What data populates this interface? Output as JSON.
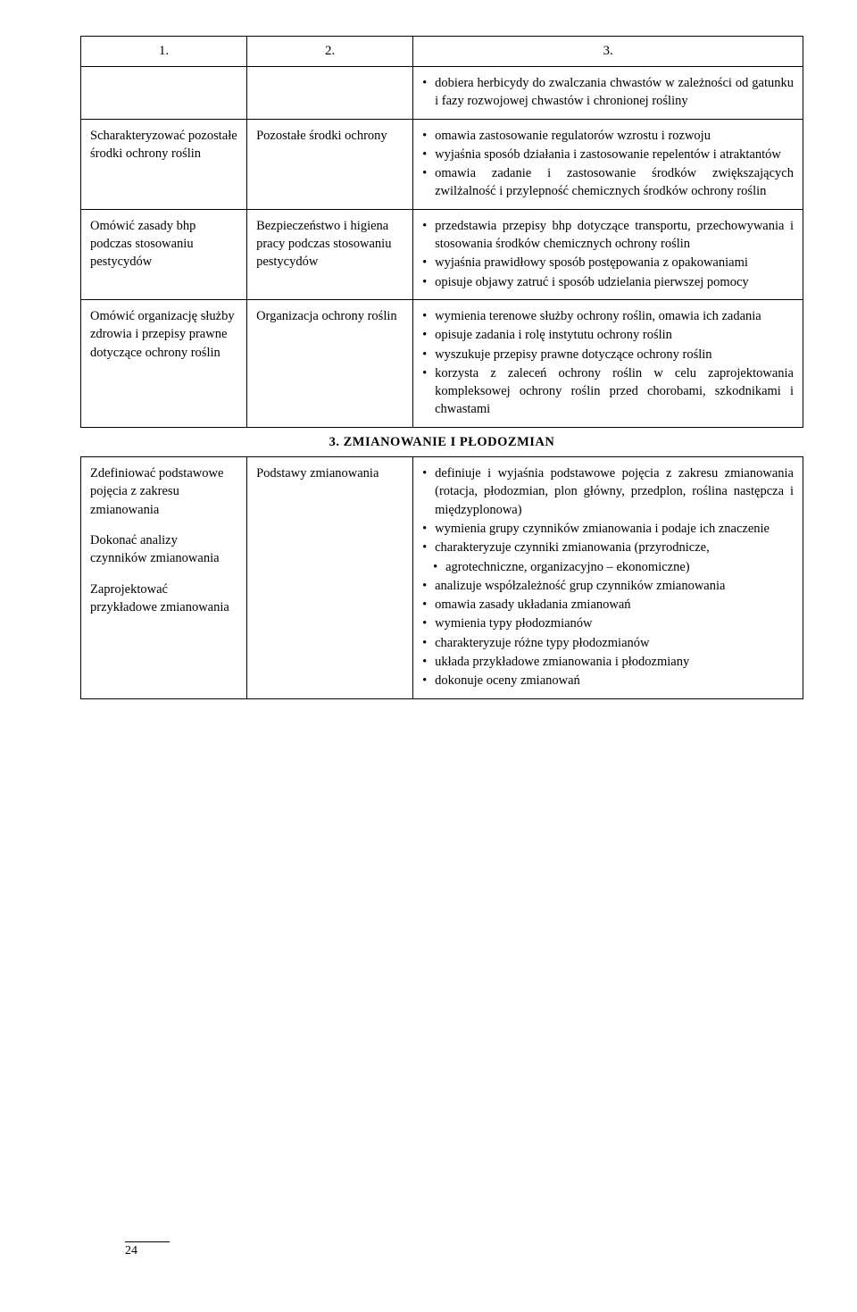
{
  "header": {
    "c1": "1.",
    "c2": "2.",
    "c3": "3."
  },
  "rows": [
    {
      "c1": "",
      "c2": "",
      "c3_items": [
        "dobiera herbicydy do zwalczania chwastów w zależności od gatunku i fazy rozwojowej chwastów i chronionej rośliny"
      ]
    },
    {
      "c1": "Scharakteryzować pozostałe środki ochrony roślin",
      "c2": "Pozostałe środki ochrony",
      "c3_items": [
        "omawia zastosowanie regulatorów wzrostu i rozwoju",
        "wyjaśnia sposób działania i zastosowanie repelentów i atraktantów",
        "omawia zadanie i zastosowanie środków zwiększających zwilżalność i przylepność chemicznych środków ochrony roślin"
      ]
    },
    {
      "c1": "Omówić zasady bhp podczas stosowaniu pestycydów",
      "c2": "Bezpieczeństwo i higiena pracy podczas stosowaniu pestycydów",
      "c3_items": [
        "przedstawia przepisy bhp dotyczące transportu, przechowywania i stosowania środków chemicznych ochrony roślin",
        "wyjaśnia prawidłowy sposób postępowania z opakowaniami",
        "opisuje objawy zatruć i sposób udzielania pierwszej pomocy"
      ]
    },
    {
      "c1": "Omówić organizację służby zdrowia i przepisy prawne dotyczące ochrony roślin",
      "c2": "Organizacja ochrony roślin",
      "c3_items": [
        "wymienia terenowe służby ochrony roślin, omawia ich zadania",
        "opisuje zadania i rolę instytutu ochrony roślin",
        "wyszukuje przepisy prawne dotyczące ochrony roślin",
        "korzysta z zaleceń ochrony roślin w celu zaprojektowania kompleksowej ochrony roślin przed chorobami, szkodnikami i chwastami"
      ]
    }
  ],
  "section_title": "3. ZMIANOWANIE I PŁODOZMIAN",
  "row5": {
    "c1_blocks": [
      "Zdefiniować podstawowe pojęcia z zakresu zmianowania",
      "Dokonać analizy czynników zmianowania",
      "Zaprojektować przykładowe zmianowania"
    ],
    "c2": "Podstawy zmianowania",
    "c3_items": [
      "definiuje i wyjaśnia podstawowe pojęcia z zakresu zmianowania (rotacja, płodozmian, plon główny, przedplon, roślina następcza i międzyplonowa)",
      "wymienia grupy czynników zmianowania i podaje ich znaczenie",
      "charakteryzuje czynniki zmianowania (przyrodnicze,"
    ],
    "c3_indent": [
      "agrotechniczne, organizacyjno – ekonomiczne)"
    ],
    "c3_items2": [
      "analizuje współzależność grup czynników zmianowania",
      "omawia zasady układania zmianowań",
      "wymienia typy płodozmianów",
      "charakteryzuje różne typy płodozmianów",
      "układa przykładowe zmianowania i płodozmiany",
      "dokonuje oceny zmianowań"
    ]
  },
  "page_number": "24"
}
